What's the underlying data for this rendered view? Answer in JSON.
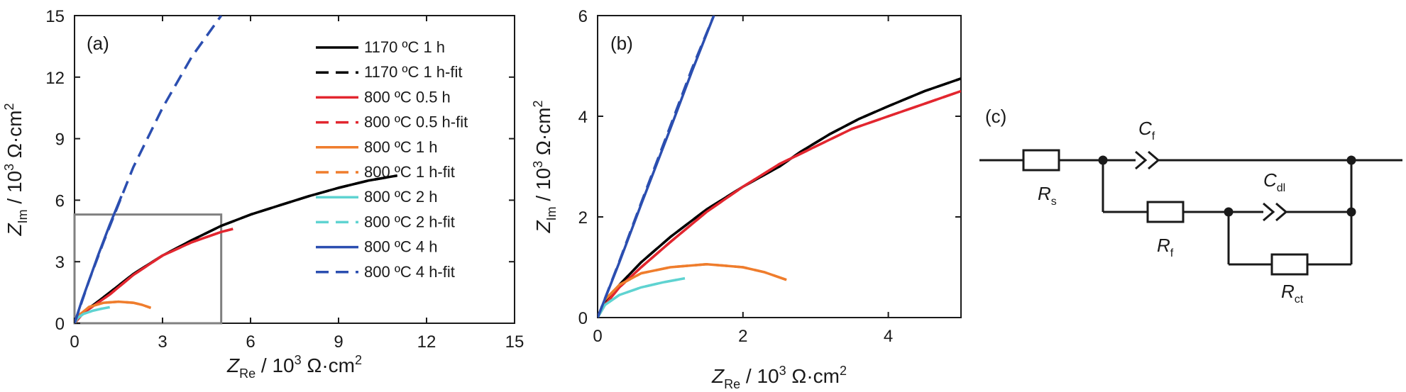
{
  "chart_data": [
    {
      "panel": "(a)",
      "type": "line",
      "xlabel": {
        "main": "Z",
        "sub": "Re",
        "unit_pre": " / 10",
        "sup": "3",
        "unit_post": " Ω·cm",
        "sup2": "2"
      },
      "ylabel": {
        "main": "Z",
        "sub": "Im",
        "unit_pre": " / 10",
        "sup": "3",
        "unit_post": " Ω·cm",
        "sup2": "2"
      },
      "xlim": [
        0,
        15
      ],
      "ylim": [
        0,
        15
      ],
      "xticks": [
        "0",
        "3",
        "6",
        "9",
        "12",
        "15"
      ],
      "yticks": [
        "0",
        "3",
        "6",
        "9",
        "12",
        "15"
      ],
      "grid": false,
      "legend_position": "top-right",
      "inset_box": {
        "x": [
          0,
          5
        ],
        "y": [
          0,
          5.3
        ]
      },
      "series": [
        {
          "name": "1170 ºC 1 h",
          "color": "#000000",
          "dash": "solid",
          "x": [
            0,
            0.3,
            0.7,
            1.2,
            2,
            3,
            4,
            5,
            6,
            7,
            8,
            9,
            10,
            11
          ],
          "y": [
            0,
            0.55,
            0.95,
            1.5,
            2.4,
            3.3,
            4.05,
            4.75,
            5.3,
            5.75,
            6.2,
            6.6,
            6.95,
            7.2
          ]
        },
        {
          "name": "1170 ºC 1 h-fit",
          "color": "#000000",
          "dash": "dashed",
          "x": [
            0,
            0.3,
            0.7,
            1.2,
            2,
            3,
            4,
            5,
            6,
            7,
            8,
            9,
            10,
            11
          ],
          "y": [
            0,
            0.55,
            0.95,
            1.5,
            2.4,
            3.3,
            4.05,
            4.75,
            5.3,
            5.75,
            6.2,
            6.6,
            6.95,
            7.2
          ]
        },
        {
          "name": "800 ºC 0.5 h",
          "color": "#e2262f",
          "dash": "solid",
          "x": [
            0,
            0.3,
            0.7,
            1.2,
            2,
            3,
            4,
            5,
            5.4
          ],
          "y": [
            0,
            0.5,
            0.9,
            1.4,
            2.35,
            3.3,
            3.95,
            4.45,
            4.6
          ]
        },
        {
          "name": "800 ºC 0.5 h-fit",
          "color": "#e2262f",
          "dash": "dashed",
          "x": [
            0,
            0.3,
            0.7,
            1.2,
            2,
            3,
            4,
            5,
            5.4
          ],
          "y": [
            0,
            0.5,
            0.9,
            1.4,
            2.35,
            3.3,
            3.95,
            4.45,
            4.6
          ]
        },
        {
          "name": "800 ºC 1 h",
          "color": "#ef7d2d",
          "dash": "solid",
          "x": [
            0,
            0.2,
            0.5,
            1,
            1.5,
            2,
            2.3,
            2.6
          ],
          "y": [
            0,
            0.45,
            0.8,
            1.0,
            1.05,
            1.0,
            0.9,
            0.75
          ]
        },
        {
          "name": "800 ºC 1 h-fit",
          "color": "#ef7d2d",
          "dash": "dashed",
          "x": [
            0,
            0.2,
            0.5,
            1,
            1.5,
            2,
            2.3,
            2.6
          ],
          "y": [
            0,
            0.45,
            0.8,
            1.0,
            1.05,
            1.0,
            0.9,
            0.75
          ]
        },
        {
          "name": "800 ºC 2 h",
          "color": "#5fd3d1",
          "dash": "solid",
          "x": [
            0,
            0.1,
            0.3,
            0.6,
            0.9,
            1.2
          ],
          "y": [
            0,
            0.25,
            0.45,
            0.6,
            0.7,
            0.78
          ]
        },
        {
          "name": "800 ºC 2 h-fit",
          "color": "#5fd3d1",
          "dash": "dashed",
          "x": [
            0,
            0.1,
            0.3,
            0.6,
            0.9,
            1.2
          ],
          "y": [
            0,
            0.25,
            0.45,
            0.6,
            0.7,
            0.78
          ]
        },
        {
          "name": "800 ºC 4 h",
          "color": "#2b4eb0",
          "dash": "solid",
          "x": [
            0,
            0.25,
            0.5,
            0.8,
            1.2,
            1.6
          ],
          "y": [
            0,
            1.1,
            2.1,
            3.3,
            4.8,
            6.2
          ]
        },
        {
          "name": "800 ºC 4 h-fit",
          "color": "#2b4eb0",
          "dash": "dashed",
          "x": [
            0,
            0.5,
            1,
            1.5,
            2,
            3,
            4,
            5
          ],
          "y": [
            0,
            2.1,
            4.0,
            5.8,
            7.6,
            10.5,
            13.0,
            15.0
          ]
        }
      ]
    },
    {
      "panel": "(b)",
      "type": "line",
      "xlabel": {
        "main": "Z",
        "sub": "Re",
        "unit_pre": " / 10",
        "sup": "3",
        "unit_post": " Ω·cm",
        "sup2": "2"
      },
      "ylabel": {
        "main": "Z",
        "sub": "Im",
        "unit_pre": " / 10",
        "sup": "3",
        "unit_post": " Ω·cm",
        "sup2": "2"
      },
      "xlim": [
        0,
        5
      ],
      "ylim": [
        0,
        6
      ],
      "xticks": [
        "0",
        "2",
        "4"
      ],
      "yticks": [
        "0",
        "2",
        "4",
        "6"
      ],
      "grid": false,
      "series": [
        {
          "name": "1170 ºC 1 h",
          "color": "#000000",
          "dash": "solid",
          "x": [
            0,
            0.1,
            0.3,
            0.6,
            1,
            1.5,
            2,
            2.5,
            2.8,
            3.2,
            3.6,
            4,
            4.5,
            5
          ],
          "y": [
            0,
            0.3,
            0.65,
            1.1,
            1.6,
            2.15,
            2.6,
            3.0,
            3.3,
            3.65,
            3.95,
            4.2,
            4.5,
            4.75
          ]
        },
        {
          "name": "1170 ºC 1 h-fit",
          "color": "#000000",
          "dash": "dashed",
          "x": [
            0,
            0.1,
            0.3,
            0.6,
            1,
            1.5,
            2,
            2.5,
            2.8,
            3.2,
            3.6,
            4,
            4.5,
            5
          ],
          "y": [
            0,
            0.3,
            0.65,
            1.1,
            1.6,
            2.15,
            2.6,
            3.0,
            3.3,
            3.65,
            3.95,
            4.2,
            4.5,
            4.75
          ]
        },
        {
          "name": "800 ºC 0.5 h",
          "color": "#e2262f",
          "dash": "solid",
          "x": [
            0,
            0.1,
            0.3,
            0.6,
            1,
            1.5,
            2,
            2.5,
            3,
            3.5,
            4,
            4.5,
            5
          ],
          "y": [
            0,
            0.25,
            0.6,
            1.0,
            1.5,
            2.1,
            2.6,
            3.05,
            3.4,
            3.75,
            4.0,
            4.25,
            4.5
          ]
        },
        {
          "name": "800 ºC 0.5 h-fit",
          "color": "#e2262f",
          "dash": "dashed",
          "x": [
            0,
            0.1,
            0.3,
            0.6,
            1,
            1.5,
            2,
            2.5,
            3,
            3.5,
            4,
            4.5,
            5
          ],
          "y": [
            0,
            0.25,
            0.6,
            1.0,
            1.5,
            2.1,
            2.6,
            3.05,
            3.4,
            3.75,
            4.0,
            4.25,
            4.5
          ]
        },
        {
          "name": "800 ºC 1 h",
          "color": "#ef7d2d",
          "dash": "solid",
          "x": [
            0,
            0.1,
            0.3,
            0.6,
            1,
            1.5,
            2,
            2.3,
            2.6
          ],
          "y": [
            0,
            0.35,
            0.65,
            0.88,
            1.0,
            1.06,
            1.0,
            0.9,
            0.75
          ]
        },
        {
          "name": "800 ºC 1 h-fit",
          "color": "#ef7d2d",
          "dash": "dashed",
          "x": [
            0,
            0.1,
            0.3,
            0.6,
            1,
            1.5,
            2,
            2.3,
            2.6
          ],
          "y": [
            0,
            0.35,
            0.65,
            0.88,
            1.0,
            1.06,
            1.0,
            0.9,
            0.75
          ]
        },
        {
          "name": "800 ºC 2 h",
          "color": "#5fd3d1",
          "dash": "solid",
          "x": [
            0,
            0.1,
            0.3,
            0.6,
            0.9,
            1.2
          ],
          "y": [
            0,
            0.25,
            0.45,
            0.6,
            0.7,
            0.78
          ]
        },
        {
          "name": "800 ºC 2 h-fit",
          "color": "#5fd3d1",
          "dash": "dashed",
          "x": [
            0,
            0.1,
            0.3,
            0.6,
            0.9,
            1.2
          ],
          "y": [
            0,
            0.25,
            0.45,
            0.6,
            0.7,
            0.78
          ]
        },
        {
          "name": "800 ºC 4 h",
          "color": "#2b4eb0",
          "dash": "solid",
          "x": [
            0,
            0.3,
            0.6,
            1,
            1.3,
            1.6
          ],
          "y": [
            0,
            1.1,
            2.25,
            3.75,
            4.9,
            6.0
          ]
        },
        {
          "name": "800 ºC 4 h-fit",
          "color": "#2b4eb0",
          "dash": "dashed",
          "x": [
            0,
            0.3,
            0.6,
            1,
            1.3,
            1.6
          ],
          "y": [
            0,
            1.12,
            2.28,
            3.8,
            4.95,
            6.0
          ]
        }
      ]
    }
  ],
  "circuit": {
    "panel": "(c)",
    "components": [
      {
        "id": "Rs",
        "main": "R",
        "sub": "s"
      },
      {
        "id": "Cf",
        "main": "C",
        "sub": "f"
      },
      {
        "id": "Rf",
        "main": "R",
        "sub": "f"
      },
      {
        "id": "Cdl",
        "main": "C",
        "sub": "dl"
      },
      {
        "id": "Rct",
        "main": "R",
        "sub": "ct"
      }
    ]
  }
}
